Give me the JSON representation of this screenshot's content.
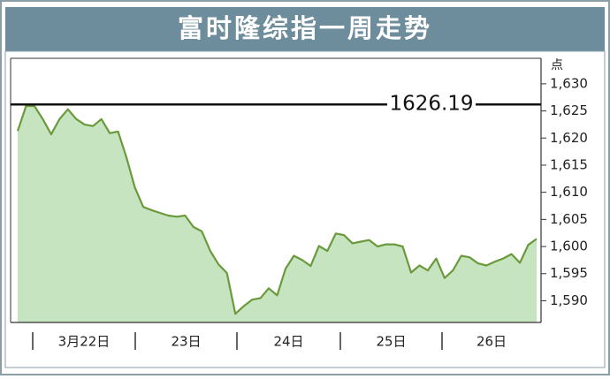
{
  "chart_data": {
    "type": "area",
    "title": "富时隆综指一周走势",
    "y_unit": "点",
    "day_labels": [
      "3月22日",
      "23日",
      "24日",
      "25日",
      "26日"
    ],
    "values": [
      1621.3,
      1625.9,
      1625.9,
      1623.5,
      1620.7,
      1623.5,
      1625.3,
      1623.5,
      1622.5,
      1622.2,
      1623.5,
      1620.9,
      1621.2,
      1616.4,
      1610.9,
      1607.3,
      1606.7,
      1606.2,
      1605.7,
      1605.5,
      1605.7,
      1603.6,
      1602.8,
      1599.2,
      1596.7,
      1595.1,
      1587.6,
      1589.0,
      1590.2,
      1590.5,
      1592.3,
      1591.0,
      1595.9,
      1598.3,
      1597.5,
      1596.4,
      1600.1,
      1599.2,
      1602.4,
      1602.1,
      1600.6,
      1600.9,
      1601.2,
      1600.0,
      1600.4,
      1600.4,
      1600.0,
      1595.2,
      1596.5,
      1595.6,
      1597.8,
      1594.2,
      1595.6,
      1598.3,
      1598.0,
      1596.9,
      1596.5,
      1597.2,
      1597.8,
      1598.6,
      1597.0,
      1600.3,
      1601.4
    ],
    "line_color": "#6a9a3c",
    "fill_color": "#c6e4c0",
    "reference_line": 1626.19,
    "ylim": [
      1586,
      1634.7
    ],
    "yticks": [
      {
        "value": 1590,
        "label": "1,590"
      },
      {
        "value": 1595,
        "label": "1,595"
      },
      {
        "value": 1600,
        "label": "1,600"
      },
      {
        "value": 1605,
        "label": "1,605"
      },
      {
        "value": 1610,
        "label": "1,610"
      },
      {
        "value": 1615,
        "label": "1,615"
      },
      {
        "value": 1620,
        "label": "1,620"
      },
      {
        "value": 1625,
        "label": "1,625"
      },
      {
        "value": 1630,
        "label": "1,630"
      }
    ]
  }
}
